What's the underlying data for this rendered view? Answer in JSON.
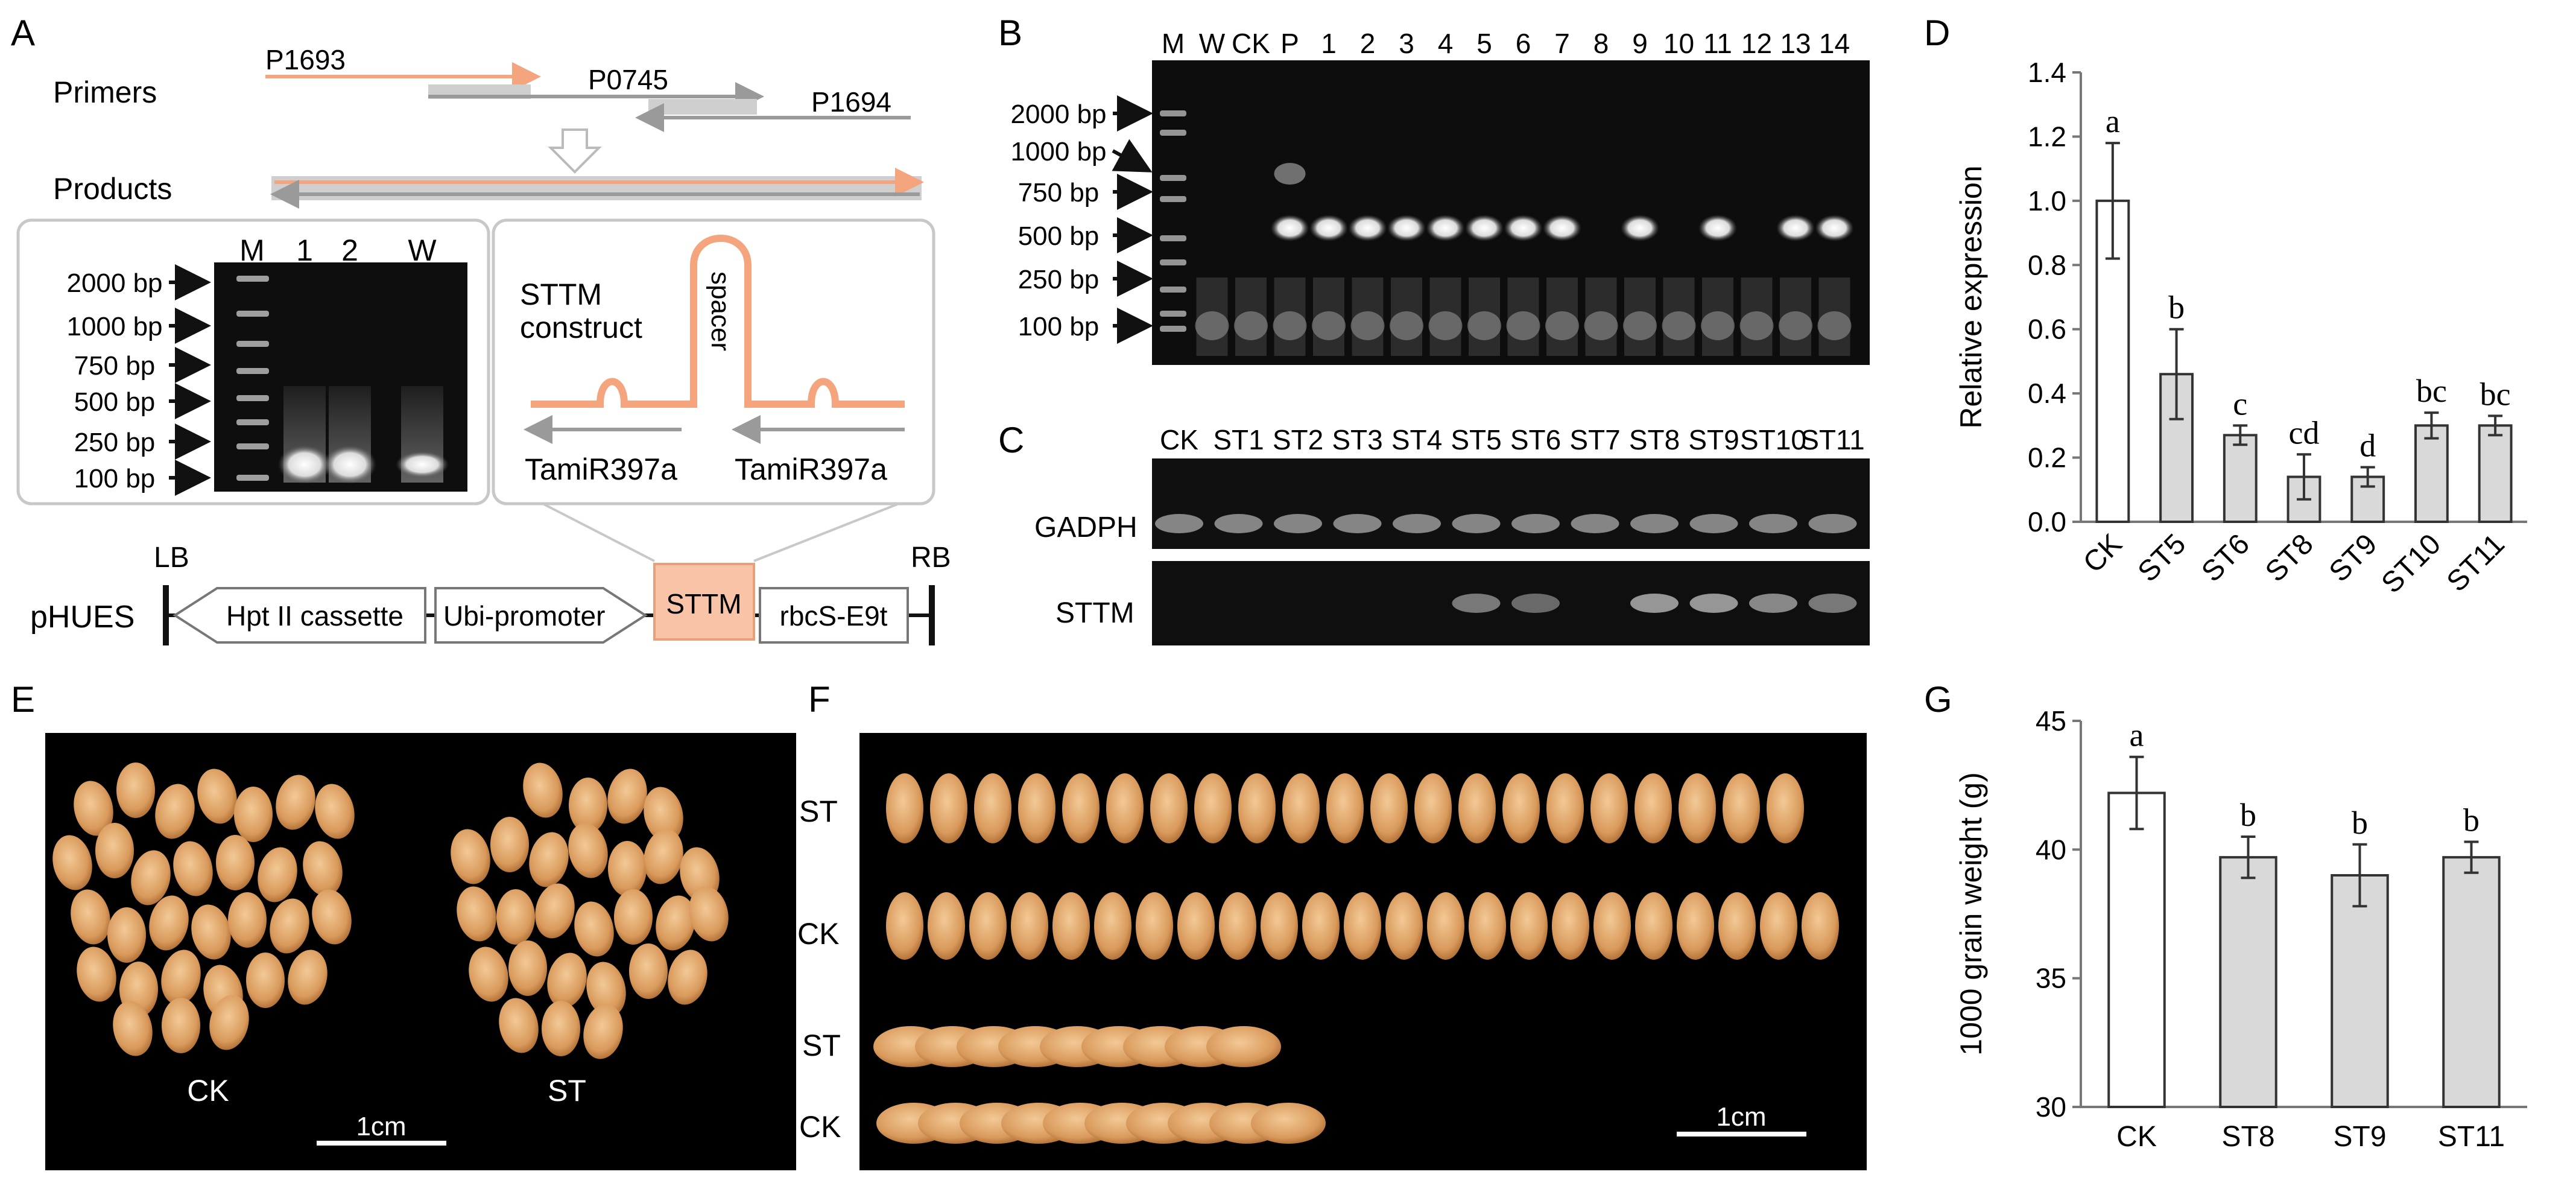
{
  "panels": {
    "A": "A",
    "B": "B",
    "C": "C",
    "D": "D",
    "E": "E",
    "F": "F",
    "G": "G"
  },
  "panelA": {
    "primers_label": "Primers",
    "products_label": "Products",
    "primer1": "P1693",
    "primer2": "P0745",
    "primer3": "P1694",
    "gel_lanes": [
      "M",
      "1",
      "2",
      "W"
    ],
    "ladder": [
      "2000 bp",
      "1000 bp",
      "750 bp",
      "500 bp",
      "250 bp",
      "100 bp"
    ],
    "sttm_line1": "STTM",
    "sttm_line2": "construct",
    "spacer": "spacer",
    "mir_left": "TamiR397a",
    "mir_right": "TamiR397a",
    "vector": {
      "name": "pHUES",
      "lb": "LB",
      "rb": "RB",
      "hpt": "Hpt II cassette",
      "ubi": "Ubi-promoter",
      "sttm": "STTM",
      "term": "rbcS-E9t"
    },
    "colors": {
      "orange": "#f4a57e",
      "sttm_box": "#f8c3a6"
    }
  },
  "panelB": {
    "lanes": [
      "M",
      "W",
      "CK",
      "P",
      "1",
      "2",
      "3",
      "4",
      "5",
      "6",
      "7",
      "8",
      "9",
      "10",
      "11",
      "12",
      "13",
      "14"
    ],
    "ladder": [
      "2000 bp",
      "1000 bp",
      "750 bp",
      "500 bp",
      "250 bp",
      "100 bp"
    ]
  },
  "panelC": {
    "lanes": [
      "CK",
      "ST1",
      "ST2",
      "ST3",
      "ST4",
      "ST5",
      "ST6",
      "ST7",
      "ST8",
      "ST9",
      "ST10",
      "ST11"
    ],
    "rows": [
      "GADPH",
      "STTM"
    ]
  },
  "panelE": {
    "left": "CK",
    "right": "ST",
    "scale": "1cm"
  },
  "panelF": {
    "rows": [
      "ST",
      "CK",
      "ST",
      "CK"
    ],
    "scale": "1cm"
  },
  "chart_data": [
    {
      "type": "bar",
      "panel": "D",
      "categories": [
        "CK",
        "ST5",
        "ST6",
        "ST8",
        "ST9",
        "ST10",
        "ST11"
      ],
      "values": [
        1.0,
        0.46,
        0.27,
        0.14,
        0.14,
        0.3,
        0.3
      ],
      "errors": [
        0.18,
        0.14,
        0.03,
        0.07,
        0.03,
        0.04,
        0.03
      ],
      "letters": [
        "a",
        "b",
        "c",
        "cd",
        "d",
        "bc",
        "bc"
      ],
      "ylabel": "Relative expression",
      "ylim": [
        0,
        1.4
      ],
      "yticks": [
        "0.0",
        "0.2",
        "0.4",
        "0.6",
        "0.8",
        "1.0",
        "1.2",
        "1.4"
      ],
      "bar_colors": [
        "#ffffff",
        "#d9d9d9",
        "#d9d9d9",
        "#d9d9d9",
        "#d9d9d9",
        "#d9d9d9",
        "#d9d9d9"
      ]
    },
    {
      "type": "bar",
      "panel": "G",
      "categories": [
        "CK",
        "ST8",
        "ST9",
        "ST11"
      ],
      "values": [
        42.2,
        39.7,
        39.0,
        39.7
      ],
      "errors": [
        1.4,
        0.8,
        1.2,
        0.6
      ],
      "letters": [
        "a",
        "b",
        "b",
        "b"
      ],
      "ylabel": "1000 grain weight (g)",
      "ylim": [
        30,
        45
      ],
      "yticks": [
        "30",
        "35",
        "40",
        "45"
      ],
      "bar_colors": [
        "#ffffff",
        "#d9d9d9",
        "#d9d9d9",
        "#d9d9d9"
      ]
    }
  ]
}
